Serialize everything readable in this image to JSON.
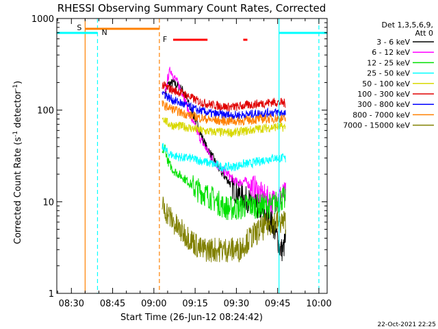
{
  "chart_data": {
    "type": "line",
    "title": "RHESSI Observing Summary Count Rates, Corrected",
    "xlabel": "Start Time (26-Jun-12 08:24:42)",
    "ylabel": "Corrected Count Rate (s⁻¹ detector⁻¹)",
    "ylabel_parts": {
      "main": "Corrected Count Rate (s",
      "sup1": "-1",
      "mid": " detector",
      "sup2": "-1",
      "end": ")"
    },
    "y_scale": "log",
    "ylim": [
      1,
      1000
    ],
    "xlim": [
      "08:24:42",
      "10:03:00"
    ],
    "x_ticks": [
      {
        "t": "08:30",
        "label": "08:30"
      },
      {
        "t": "08:45",
        "label": "08:45"
      },
      {
        "t": "09:00",
        "label": "09:00"
      },
      {
        "t": "09:15",
        "label": "09:15"
      },
      {
        "t": "09:30",
        "label": "09:30"
      },
      {
        "t": "09:45",
        "label": "09:45"
      },
      {
        "t": "10:00",
        "label": "10:00"
      }
    ],
    "y_ticks": [
      {
        "v": 1,
        "label": "1"
      },
      {
        "v": 10,
        "label": "10"
      },
      {
        "v": 100,
        "label": "100"
      },
      {
        "v": 1000,
        "label": "1000"
      }
    ],
    "legend": {
      "placement": "right",
      "header": [
        "Det 1,3,5,6,9,",
        "Att 0"
      ],
      "entries": [
        {
          "label": "3 - 6 keV",
          "color": "#000000"
        },
        {
          "label": "6 - 12 keV",
          "color": "#ff00ff"
        },
        {
          "label": "12 - 25 keV",
          "color": "#00e000"
        },
        {
          "label": "25 - 50 keV",
          "color": "#00ffff"
        },
        {
          "label": "50 - 100 keV",
          "color": "#d8d800"
        },
        {
          "label": "100 - 300 keV",
          "color": "#e00000"
        },
        {
          "label": "300 - 800 keV",
          "color": "#0000ff"
        },
        {
          "label": "800 - 7000 keV",
          "color": "#ff8000"
        },
        {
          "label": "7000 - 15000 keV",
          "color": "#808000"
        }
      ]
    },
    "flags": [
      {
        "label": "S",
        "color": "#ff8000"
      },
      {
        "label": "N",
        "color": "#00ffff"
      },
      {
        "label": "F",
        "color": "#ff0000"
      }
    ],
    "series": [
      {
        "color": "#000000",
        "points": [
          [
            "09:04",
            150
          ],
          [
            "09:05",
            190
          ],
          [
            "09:07",
            200
          ],
          [
            "09:09",
            180
          ],
          [
            "09:11",
            160
          ],
          [
            "09:13",
            110
          ],
          [
            "09:15",
            80
          ],
          [
            "09:17",
            55
          ],
          [
            "09:19",
            40
          ],
          [
            "09:21",
            32
          ],
          [
            "09:23",
            25
          ],
          [
            "09:25",
            20
          ],
          [
            "09:27",
            17
          ],
          [
            "09:29",
            14
          ],
          [
            "09:31",
            12
          ],
          [
            "09:33",
            11
          ],
          [
            "09:35",
            10
          ],
          [
            "09:37",
            9
          ],
          [
            "09:39",
            8
          ],
          [
            "09:41",
            7
          ],
          [
            "09:43",
            6
          ],
          [
            "09:45",
            4
          ],
          [
            "09:46",
            3
          ],
          [
            "09:47",
            3
          ],
          [
            "09:48",
            4
          ]
        ]
      },
      {
        "color": "#ff00ff",
        "points": [
          [
            "09:04",
            140
          ],
          [
            "09:05",
            220
          ],
          [
            "09:06",
            280
          ],
          [
            "09:07",
            240
          ],
          [
            "09:09",
            190
          ],
          [
            "09:11",
            140
          ],
          [
            "09:13",
            90
          ],
          [
            "09:15",
            65
          ],
          [
            "09:17",
            48
          ],
          [
            "09:19",
            38
          ],
          [
            "09:21",
            30
          ],
          [
            "09:23",
            25
          ],
          [
            "09:25",
            22
          ],
          [
            "09:27",
            20
          ],
          [
            "09:29",
            17
          ],
          [
            "09:31",
            16
          ],
          [
            "09:33",
            17
          ],
          [
            "09:35",
            15
          ],
          [
            "09:37",
            14
          ],
          [
            "09:39",
            12
          ],
          [
            "09:41",
            11
          ],
          [
            "09:43",
            10
          ],
          [
            "09:45",
            11
          ],
          [
            "09:47",
            12
          ],
          [
            "09:48",
            12
          ]
        ]
      },
      {
        "color": "#00e000",
        "points": [
          [
            "09:03",
            32
          ],
          [
            "09:04",
            40
          ],
          [
            "09:05",
            28
          ],
          [
            "09:07",
            22
          ],
          [
            "09:09",
            20
          ],
          [
            "09:11",
            18
          ],
          [
            "09:13",
            16
          ],
          [
            "09:15",
            14
          ],
          [
            "09:17",
            13
          ],
          [
            "09:19",
            12
          ],
          [
            "09:21",
            11
          ],
          [
            "09:23",
            10
          ],
          [
            "09:25",
            9
          ],
          [
            "09:27",
            8.5
          ],
          [
            "09:29",
            8.5
          ],
          [
            "09:31",
            8.5
          ],
          [
            "09:33",
            9
          ],
          [
            "09:35",
            9
          ],
          [
            "09:37",
            9
          ],
          [
            "09:39",
            9
          ],
          [
            "09:41",
            9
          ],
          [
            "09:43",
            9
          ],
          [
            "09:45",
            10
          ],
          [
            "09:47",
            11
          ],
          [
            "09:48",
            10
          ]
        ]
      },
      {
        "color": "#00ffff",
        "points": [
          [
            "09:03",
            40
          ],
          [
            "09:04",
            38
          ],
          [
            "09:05",
            34
          ],
          [
            "09:07",
            32
          ],
          [
            "09:09",
            31
          ],
          [
            "09:11",
            30
          ],
          [
            "09:13",
            30
          ],
          [
            "09:15",
            29
          ],
          [
            "09:17",
            28
          ],
          [
            "09:19",
            27
          ],
          [
            "09:21",
            26
          ],
          [
            "09:23",
            25
          ],
          [
            "09:25",
            24
          ],
          [
            "09:27",
            24
          ],
          [
            "09:29",
            24
          ],
          [
            "09:31",
            25
          ],
          [
            "09:33",
            26
          ],
          [
            "09:35",
            26
          ],
          [
            "09:37",
            27
          ],
          [
            "09:39",
            28
          ],
          [
            "09:41",
            29
          ],
          [
            "09:43",
            30
          ],
          [
            "09:45",
            30
          ],
          [
            "09:47",
            30
          ],
          [
            "09:48",
            29
          ]
        ]
      },
      {
        "color": "#d8d800",
        "points": [
          [
            "09:03",
            85
          ],
          [
            "09:05",
            72
          ],
          [
            "09:07",
            68
          ],
          [
            "09:09",
            67
          ],
          [
            "09:11",
            66
          ],
          [
            "09:13",
            64
          ],
          [
            "09:15",
            62
          ],
          [
            "09:17",
            60
          ],
          [
            "09:19",
            59
          ],
          [
            "09:21",
            58
          ],
          [
            "09:23",
            58
          ],
          [
            "09:25",
            57
          ],
          [
            "09:27",
            57
          ],
          [
            "09:29",
            57
          ],
          [
            "09:31",
            58
          ],
          [
            "09:33",
            59
          ],
          [
            "09:35",
            60
          ],
          [
            "09:37",
            62
          ],
          [
            "09:39",
            63
          ],
          [
            "09:41",
            64
          ],
          [
            "09:43",
            65
          ],
          [
            "09:45",
            66
          ],
          [
            "09:47",
            65
          ],
          [
            "09:48",
            65
          ]
        ]
      },
      {
        "color": "#e00000",
        "points": [
          [
            "09:03",
            190
          ],
          [
            "09:05",
            175
          ],
          [
            "09:07",
            165
          ],
          [
            "09:09",
            158
          ],
          [
            "09:11",
            150
          ],
          [
            "09:13",
            140
          ],
          [
            "09:15",
            130
          ],
          [
            "09:17",
            122
          ],
          [
            "09:19",
            118
          ],
          [
            "09:21",
            115
          ],
          [
            "09:23",
            112
          ],
          [
            "09:25",
            110
          ],
          [
            "09:27",
            108
          ],
          [
            "09:29",
            108
          ],
          [
            "09:31",
            110
          ],
          [
            "09:33",
            112
          ],
          [
            "09:35",
            114
          ],
          [
            "09:37",
            116
          ],
          [
            "09:39",
            118
          ],
          [
            "09:41",
            120
          ],
          [
            "09:43",
            122
          ],
          [
            "09:45",
            122
          ],
          [
            "09:47",
            120
          ],
          [
            "09:48",
            118
          ]
        ]
      },
      {
        "color": "#0000ff",
        "points": [
          [
            "09:03",
            160
          ],
          [
            "09:05",
            140
          ],
          [
            "09:07",
            128
          ],
          [
            "09:09",
            122
          ],
          [
            "09:11",
            115
          ],
          [
            "09:13",
            108
          ],
          [
            "09:15",
            102
          ],
          [
            "09:17",
            98
          ],
          [
            "09:19",
            95
          ],
          [
            "09:21",
            92
          ],
          [
            "09:23",
            90
          ],
          [
            "09:25",
            89
          ],
          [
            "09:27",
            88
          ],
          [
            "09:29",
            88
          ],
          [
            "09:31",
            88
          ],
          [
            "09:33",
            89
          ],
          [
            "09:35",
            90
          ],
          [
            "09:37",
            91
          ],
          [
            "09:39",
            92
          ],
          [
            "09:41",
            93
          ],
          [
            "09:43",
            94
          ],
          [
            "09:45",
            94
          ],
          [
            "09:47",
            93
          ],
          [
            "09:48",
            92
          ]
        ]
      },
      {
        "color": "#ff8000",
        "points": [
          [
            "09:03",
            115
          ],
          [
            "09:05",
            108
          ],
          [
            "09:07",
            102
          ],
          [
            "09:09",
            96
          ],
          [
            "09:11",
            92
          ],
          [
            "09:13",
            88
          ],
          [
            "09:15",
            85
          ],
          [
            "09:17",
            82
          ],
          [
            "09:19",
            80
          ],
          [
            "09:21",
            78
          ],
          [
            "09:23",
            77
          ],
          [
            "09:25",
            76
          ],
          [
            "09:27",
            76
          ],
          [
            "09:29",
            76
          ],
          [
            "09:31",
            76
          ],
          [
            "09:33",
            77
          ],
          [
            "09:35",
            78
          ],
          [
            "09:37",
            79
          ],
          [
            "09:39",
            80
          ],
          [
            "09:41",
            80
          ],
          [
            "09:43",
            81
          ],
          [
            "09:45",
            81
          ],
          [
            "09:47",
            80
          ],
          [
            "09:48",
            80
          ]
        ]
      },
      {
        "color": "#808000",
        "points": [
          [
            "09:03",
            9
          ],
          [
            "09:05",
            7.5
          ],
          [
            "09:07",
            6
          ],
          [
            "09:09",
            5
          ],
          [
            "09:11",
            4.5
          ],
          [
            "09:13",
            4
          ],
          [
            "09:15",
            3.5
          ],
          [
            "09:17",
            3
          ],
          [
            "09:19",
            3
          ],
          [
            "09:21",
            3
          ],
          [
            "09:23",
            3
          ],
          [
            "09:25",
            3
          ],
          [
            "09:27",
            3
          ],
          [
            "09:29",
            3
          ],
          [
            "09:31",
            3
          ],
          [
            "09:33",
            3.5
          ],
          [
            "09:35",
            4
          ],
          [
            "09:37",
            4.5
          ],
          [
            "09:39",
            5
          ],
          [
            "09:41",
            5.5
          ],
          [
            "09:43",
            6
          ],
          [
            "09:45",
            6
          ],
          [
            "09:47",
            6
          ],
          [
            "09:48",
            6
          ]
        ]
      }
    ]
  },
  "footer": {
    "timestamp": "22-Oct-2021 22:25"
  }
}
